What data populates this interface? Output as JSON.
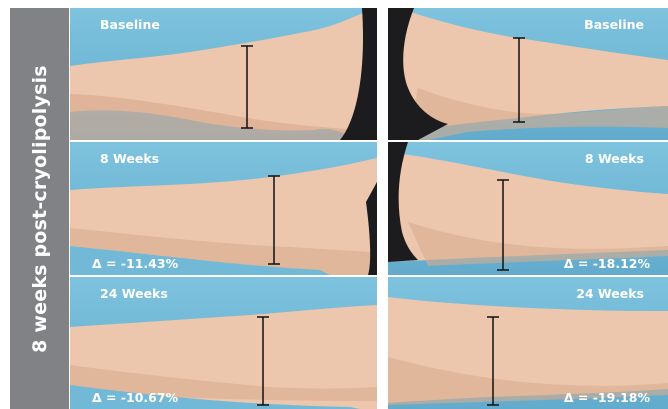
{
  "side_label": "8 weeks post-cryolipolysis",
  "colors": {
    "side_band": "#808285",
    "sky": "#72b9d7",
    "skin_light": "#ecc7ad",
    "skin_shadow": "#cf9f82",
    "clothing": "#1c1c1e",
    "text": "#ffffff"
  },
  "panels": [
    {
      "label": "Baseline",
      "delta": "",
      "side": "left",
      "row": "baseline"
    },
    {
      "label": "Baseline",
      "delta": "",
      "side": "right",
      "row": "baseline"
    },
    {
      "label": "8 Weeks",
      "delta": "Δ = -11.43%",
      "side": "left",
      "row": "8w"
    },
    {
      "label": "8 Weeks",
      "delta": "Δ = -18.12%",
      "side": "right",
      "row": "8w"
    },
    {
      "label": "24 Weeks",
      "delta": "Δ = -10.67%",
      "side": "left",
      "row": "24w"
    },
    {
      "label": "24 Weeks",
      "delta": "Δ = -19.18%",
      "side": "right",
      "row": "24w"
    }
  ]
}
